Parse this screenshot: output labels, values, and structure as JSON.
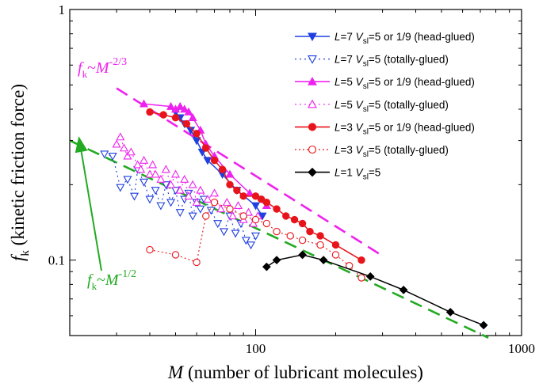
{
  "chart_data": {
    "type": "scatter",
    "title": "",
    "x_scale": "log",
    "y_scale": "log",
    "xlim": [
      20,
      1000
    ],
    "ylim": [
      0.05,
      1
    ],
    "x_ticks": [
      100,
      1000
    ],
    "x_tick_labels": [
      "100",
      "1000"
    ],
    "y_ticks": [
      0.1,
      1
    ],
    "y_tick_labels": [
      "0.1",
      "1"
    ],
    "xlabel": {
      "main": "M",
      "rest": " (number of lubricant molecules)"
    },
    "ylabel": {
      "main": "f",
      "sub": "k",
      "rest": " (kinetic  friction  force)"
    },
    "grid": false,
    "legend_position": "top-right",
    "series": [
      {
        "name": "L=7  Vsl=5 or 1/9 (head-glued)",
        "label": {
          "var": "L",
          "val": "=7",
          "v": "V",
          "vsub": "sl",
          "rest": "=5 or 1/9 (head-glued)"
        },
        "color": "#1f3fe0",
        "marker": "triangle-down",
        "filled": true,
        "dash": "solid",
        "x": [
          50,
          52,
          54,
          57,
          60,
          63,
          66,
          75,
          85,
          100,
          106
        ],
        "y": [
          0.39,
          0.37,
          0.35,
          0.33,
          0.3,
          0.27,
          0.25,
          0.22,
          0.19,
          0.165,
          0.15
        ]
      },
      {
        "name": "L=7  Vsl=5 (totally-glued)",
        "label": {
          "var": "L",
          "val": "=7",
          "v": "V",
          "vsub": "sl",
          "rest": "=5 (totally-glued)"
        },
        "color": "#1f3fe0",
        "marker": "triangle-down",
        "filled": false,
        "dash": "2,4",
        "x": [
          27,
          29,
          31,
          33,
          35,
          36,
          38,
          40,
          42,
          44,
          46,
          48,
          50,
          52,
          54,
          56,
          58,
          60,
          62,
          64,
          68,
          72,
          76,
          80,
          84,
          88,
          92,
          96,
          100
        ],
        "y": [
          0.265,
          0.26,
          0.195,
          0.21,
          0.18,
          0.23,
          0.205,
          0.175,
          0.19,
          0.165,
          0.2,
          0.17,
          0.19,
          0.155,
          0.175,
          0.185,
          0.15,
          0.17,
          0.16,
          0.175,
          0.158,
          0.14,
          0.13,
          0.15,
          0.128,
          0.14,
          0.12,
          0.115,
          0.125
        ]
      },
      {
        "name": "L=5  Vsl=5 or 1/9 (head-glued)",
        "label": {
          "var": "L",
          "val": "=5",
          "v": "V",
          "vsub": "sl",
          "rest": "=5 or 1/9 (head-glued)"
        },
        "color": "#ee22ee",
        "marker": "triangle-up",
        "filled": true,
        "dash": "solid",
        "x": [
          38,
          48,
          50,
          52,
          54,
          56,
          58,
          62,
          65,
          70,
          80,
          95,
          110
        ],
        "y": [
          0.42,
          0.41,
          0.4,
          0.41,
          0.4,
          0.39,
          0.37,
          0.33,
          0.29,
          0.26,
          0.22,
          0.185,
          0.165
        ]
      },
      {
        "name": "L=5  Vsl=5 (totally-glued)",
        "label": {
          "var": "L",
          "val": "=5",
          "v": "V",
          "vsub": "sl",
          "rest": "=5 (totally-glued)"
        },
        "color": "#ee22ee",
        "marker": "triangle-up",
        "filled": false,
        "dash": "2,4",
        "x": [
          30,
          31,
          32,
          33,
          34,
          36,
          37,
          38,
          40,
          41,
          42,
          44,
          46,
          48,
          50,
          52,
          54,
          56,
          58,
          60,
          62,
          66,
          70,
          74,
          78,
          82,
          86,
          90,
          94,
          98,
          102
        ],
        "y": [
          0.29,
          0.31,
          0.28,
          0.26,
          0.27,
          0.24,
          0.23,
          0.25,
          0.22,
          0.24,
          0.22,
          0.21,
          0.23,
          0.2,
          0.22,
          0.19,
          0.21,
          0.18,
          0.2,
          0.17,
          0.19,
          0.175,
          0.185,
          0.16,
          0.17,
          0.15,
          0.165,
          0.145,
          0.155,
          0.14,
          0.15
        ]
      },
      {
        "name": "L=3  Vsl=5 or 1/9 (head-glued)",
        "label": {
          "var": "L",
          "val": "=3",
          "v": "V",
          "vsub": "sl",
          "rest": "=5 or 1/9 (head-glued)"
        },
        "color": "#e8141b",
        "marker": "circle",
        "filled": true,
        "dash": "solid",
        "x": [
          40,
          45,
          50,
          55,
          60,
          65,
          70,
          75,
          80,
          85,
          90,
          100,
          105,
          110,
          120,
          130,
          140,
          150,
          160,
          175,
          200,
          250
        ],
        "y": [
          0.39,
          0.38,
          0.37,
          0.35,
          0.32,
          0.28,
          0.25,
          0.23,
          0.2,
          0.19,
          0.18,
          0.18,
          0.175,
          0.17,
          0.16,
          0.15,
          0.145,
          0.14,
          0.13,
          0.125,
          0.115,
          0.1
        ]
      },
      {
        "name": "L=3  Vsl=5 (totally-glued)",
        "label": {
          "var": "L",
          "val": "=3",
          "v": "V",
          "vsub": "sl",
          "rest": "=5 (totally-glued)"
        },
        "color": "#e8141b",
        "marker": "circle",
        "filled": false,
        "dash": "2,3",
        "x": [
          40,
          50,
          60,
          65,
          70,
          80,
          90,
          100,
          110,
          120,
          135,
          150,
          175,
          200,
          225,
          250
        ],
        "y": [
          0.11,
          0.105,
          0.098,
          0.15,
          0.17,
          0.16,
          0.15,
          0.145,
          0.14,
          0.13,
          0.125,
          0.12,
          0.115,
          0.105,
          0.095,
          0.085
        ]
      },
      {
        "name": "L=1  Vsl=5",
        "label": {
          "var": "L",
          "val": "=1",
          "v": "V",
          "vsub": "sl",
          "rest": "=5"
        },
        "color": "#000000",
        "marker": "diamond",
        "filled": true,
        "dash": "solid",
        "x": [
          110,
          120,
          150,
          180,
          270,
          360,
          540,
          720
        ],
        "y": [
          0.094,
          0.1,
          0.105,
          0.1,
          0.086,
          0.076,
          0.062,
          0.055
        ]
      }
    ],
    "fits": [
      {
        "name": "M^-2/3 fit",
        "color": "#ee22ee",
        "dash": "16,9",
        "x": [
          30,
          300
        ],
        "y": [
          0.485,
          0.104
        ]
      },
      {
        "name": "M^-1/2 fit",
        "color": "#22aa22",
        "dash": "16,9",
        "x": [
          20,
          750
        ],
        "y": [
          0.3,
          0.049
        ]
      }
    ],
    "annotations": [
      {
        "base": "f",
        "sub": "k",
        "tilde": "~",
        "var": "M",
        "exp": "-2/3",
        "color": "#ee22ee"
      },
      {
        "base": "f",
        "sub": "k",
        "tilde": "~",
        "var": "M",
        "exp": "-1/2",
        "color": "#22aa22"
      }
    ]
  }
}
